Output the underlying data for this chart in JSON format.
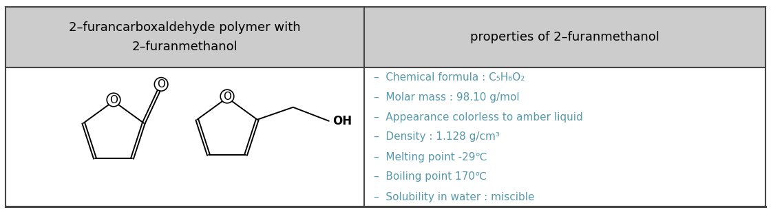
{
  "header_left": "2–furancarboxaldehyde polymer with\n2–furanmethanol",
  "header_right": "properties of 2–furanmethanol",
  "properties": [
    "–  Chemical formula : C₅H₆O₂",
    "–  Molar mass : 98.10 g/mol",
    "–  Appearance colorless to amber liquid",
    "–  Density : 1.128 g/cm³",
    "–  Melting point -29℃",
    "–  Boiling point 170℃",
    "–  Solubility in water : miscible"
  ],
  "header_bg": "#cccccc",
  "cell_bg": "#ffffff",
  "border_color": "#444444",
  "header_text_color": "#000000",
  "prop_text_color": "#5599aa",
  "fig_width": 11.2,
  "fig_height": 3.08,
  "col_split": 0.472
}
